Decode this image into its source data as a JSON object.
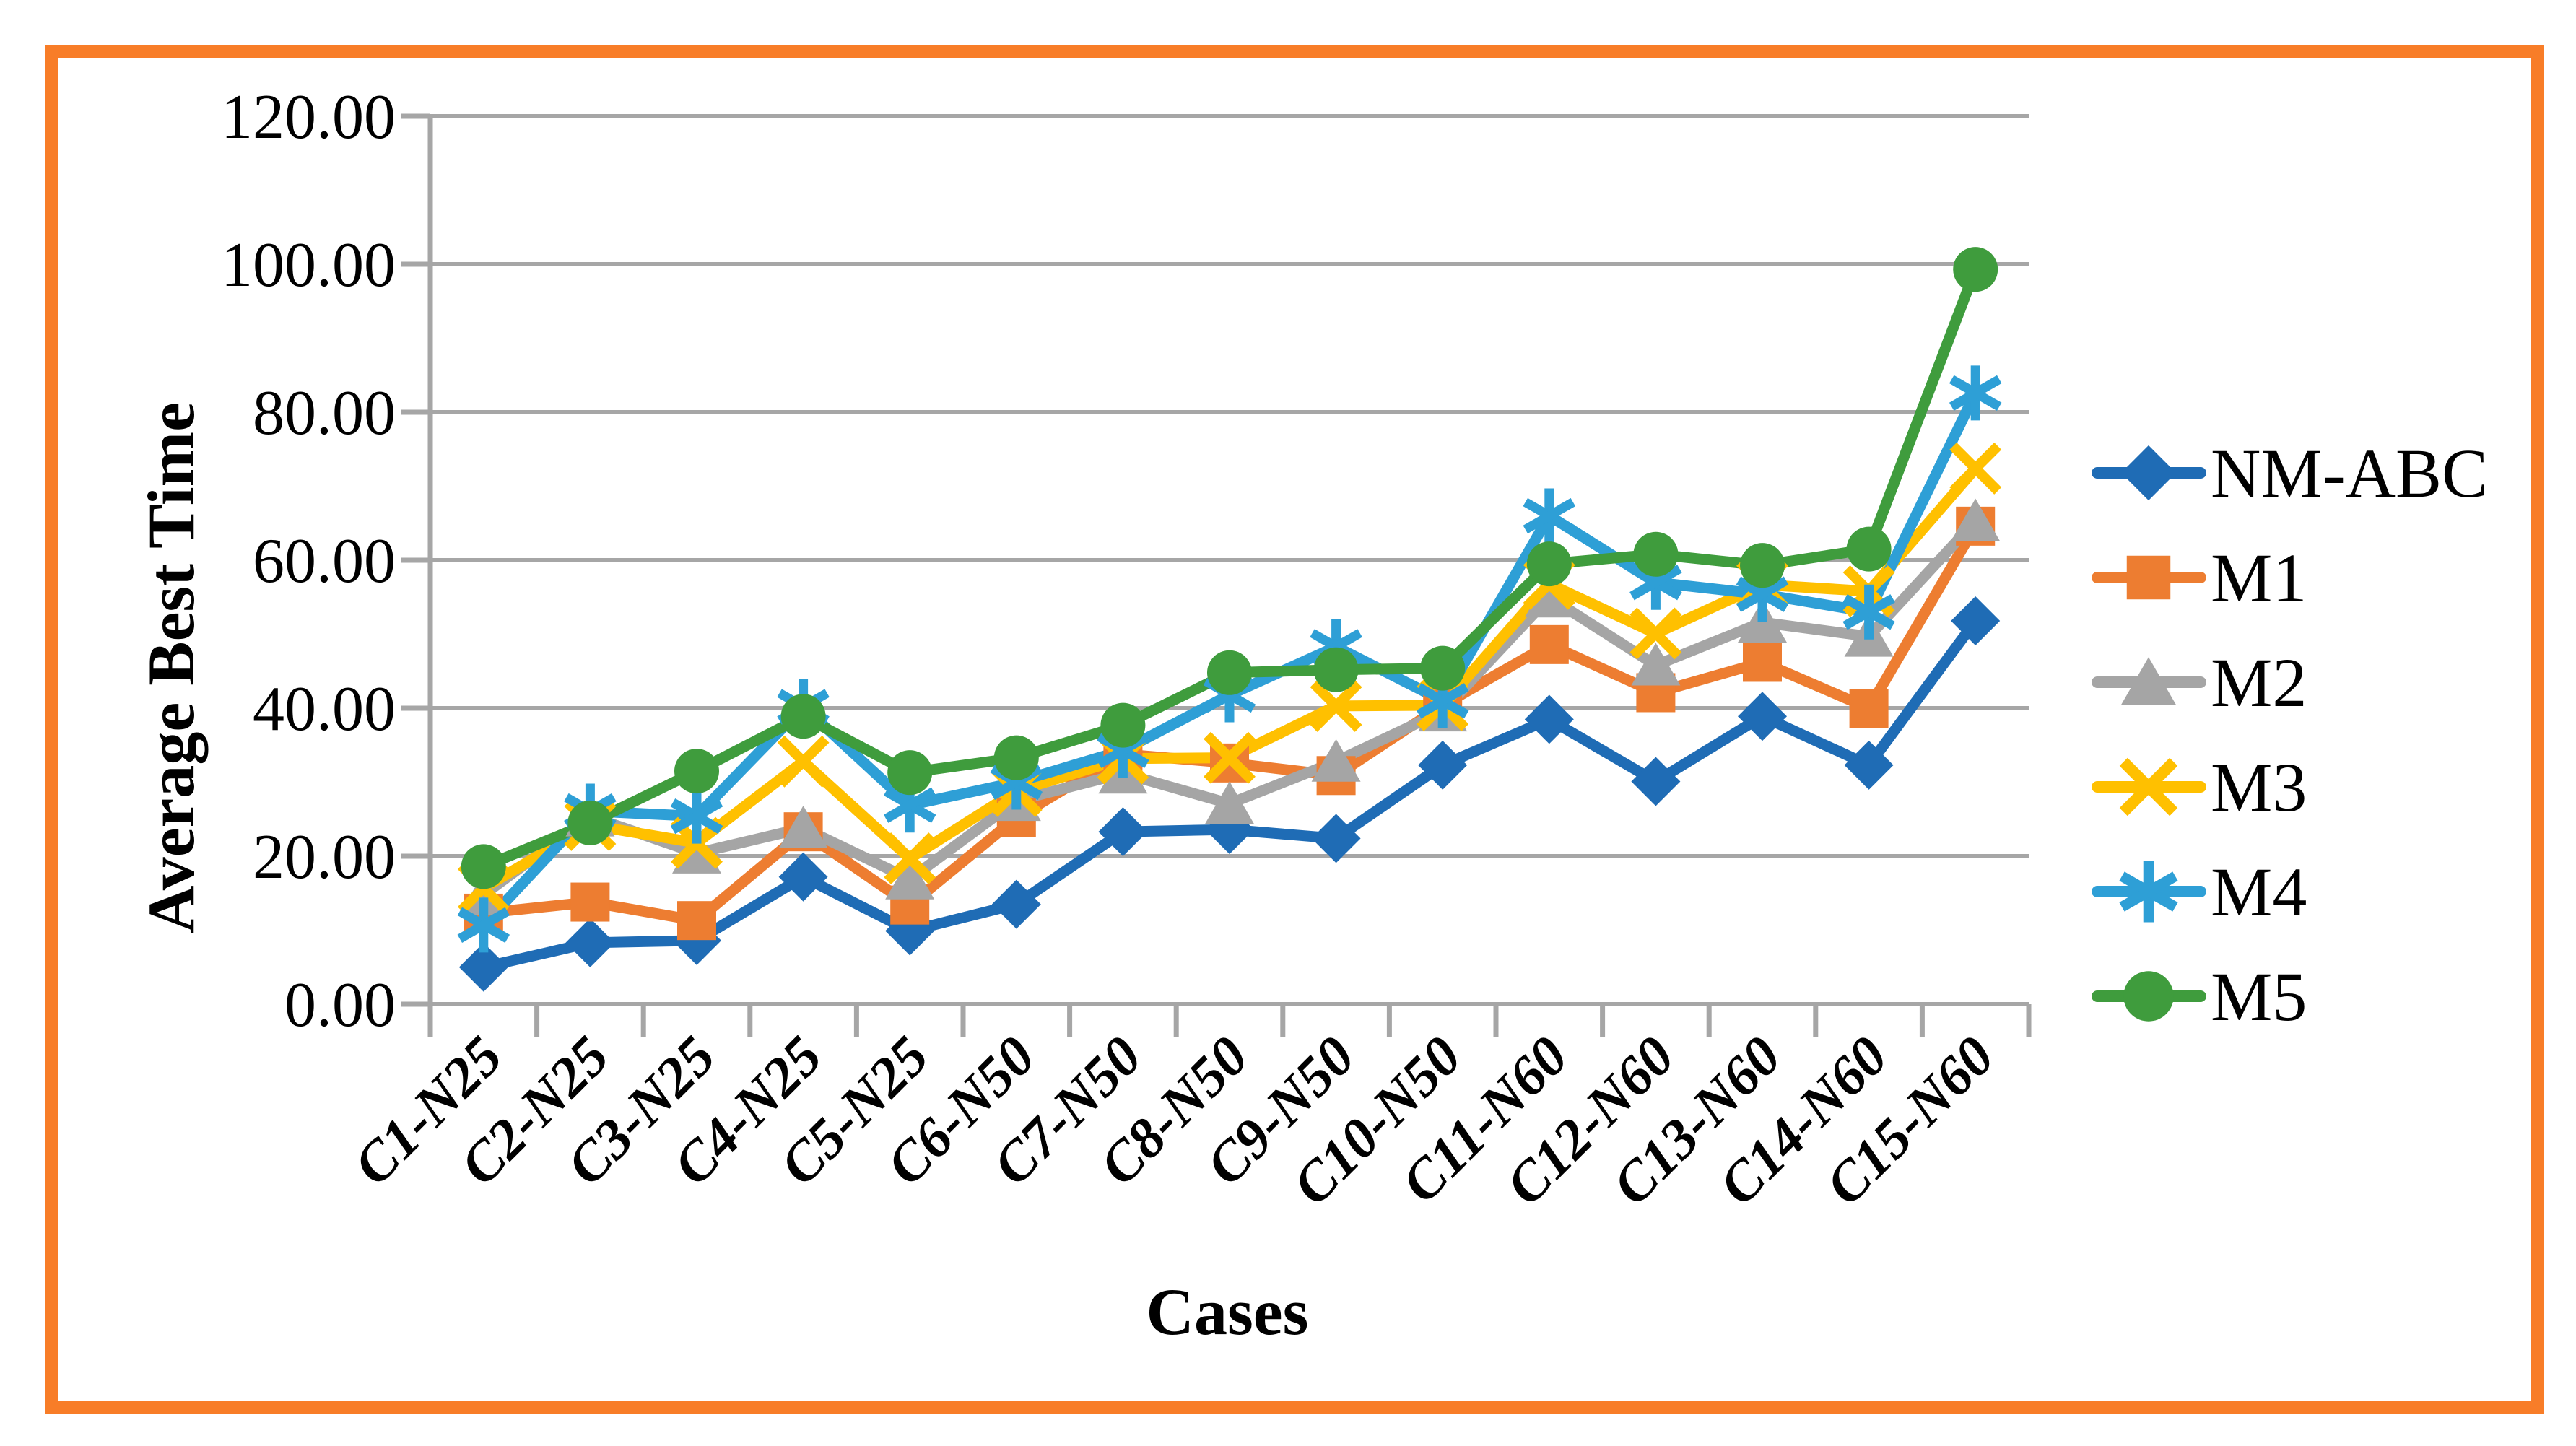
{
  "frame": {
    "border_color": "#F87D28",
    "background": "#FFFFFF"
  },
  "chart_data": {
    "type": "line",
    "title": "",
    "xlabel": "Cases",
    "ylabel": "Average Best Time",
    "ylim": [
      0,
      120
    ],
    "y_tick_step": 20,
    "grid": true,
    "legend_position": "right",
    "axis_color": "#A6A6A6",
    "y_ticks": [
      {
        "value": 120,
        "label": "120.00"
      },
      {
        "value": 100,
        "label": "100.00"
      },
      {
        "value": 80,
        "label": "80.00"
      },
      {
        "value": 60,
        "label": "60.00"
      },
      {
        "value": 40,
        "label": "40.00"
      },
      {
        "value": 20,
        "label": "20.00"
      },
      {
        "value": 0,
        "label": "0.00"
      }
    ],
    "categories": [
      "C1-N25",
      "C2-N25",
      "C3-N25",
      "C4-N25",
      "C5-N25",
      "C6-N50",
      "C7-N50",
      "C8-N50",
      "C9-N50",
      "C10-N50",
      "C11-N60",
      "C12-N60",
      "C13-N60",
      "C14-N60",
      "C15-N60"
    ],
    "series": [
      {
        "name": "NM-ABC",
        "marker": "diamond",
        "color": "#1F6CB5",
        "values": [
          5.0,
          8.3,
          8.6,
          17.2,
          9.9,
          13.5,
          23.3,
          23.6,
          22.4,
          32.3,
          38.5,
          30.1,
          38.9,
          32.3,
          51.8
        ]
      },
      {
        "name": "M1",
        "marker": "square",
        "color": "#ED7D31",
        "values": [
          12.3,
          13.8,
          11.3,
          23.3,
          13.4,
          25.2,
          33.8,
          32.6,
          30.9,
          40.4,
          48.6,
          42.1,
          46.2,
          40.0,
          64.6
        ]
      },
      {
        "name": "M2",
        "marker": "triangle",
        "color": "#A5A5A5",
        "values": [
          14.8,
          25.4,
          20.4,
          23.8,
          16.9,
          27.5,
          31.2,
          27.1,
          32.8,
          39.6,
          55.0,
          45.8,
          51.6,
          49.7,
          65.3
        ]
      },
      {
        "name": "M3",
        "marker": "x",
        "color": "#FFC000",
        "values": [
          15.7,
          24.2,
          21.8,
          32.8,
          19.7,
          28.8,
          33.2,
          33.3,
          40.3,
          40.4,
          56.8,
          50.1,
          56.7,
          55.8,
          72.4
        ]
      },
      {
        "name": "M4",
        "marker": "asterisk",
        "color": "#2E9FD6",
        "values": [
          10.7,
          26.1,
          25.4,
          40.2,
          26.9,
          30.0,
          34.3,
          41.8,
          48.3,
          41.0,
          66.0,
          57.0,
          55.4,
          53.0,
          82.6
        ]
      },
      {
        "name": "M5",
        "marker": "circle",
        "color": "#3F9C3D",
        "values": [
          18.6,
          24.5,
          31.5,
          38.9,
          31.3,
          33.3,
          37.7,
          44.8,
          45.2,
          45.4,
          59.5,
          60.8,
          59.3,
          61.5,
          99.3
        ]
      }
    ]
  }
}
